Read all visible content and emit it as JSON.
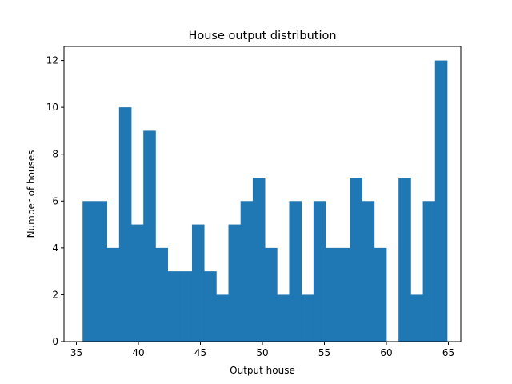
{
  "chart_data": {
    "type": "bar",
    "title": "House output distribution",
    "xlabel": "Output house",
    "ylabel": "Number of houses",
    "xlim": [
      34.0,
      66.0
    ],
    "ylim": [
      0,
      12.6
    ],
    "xticks": [
      35,
      40,
      45,
      50,
      55,
      60,
      65
    ],
    "yticks": [
      0,
      2,
      4,
      6,
      8,
      10,
      12
    ],
    "bin_start": 35.5,
    "bin_width": 0.98,
    "counts": [
      6,
      6,
      4,
      10,
      5,
      9,
      4,
      3,
      3,
      5,
      3,
      2,
      5,
      6,
      7,
      4,
      2,
      6,
      2,
      6,
      4,
      4,
      7,
      6,
      4,
      0,
      7,
      2,
      6,
      12
    ],
    "bar_color": "#1f77b4",
    "grid": false
  }
}
